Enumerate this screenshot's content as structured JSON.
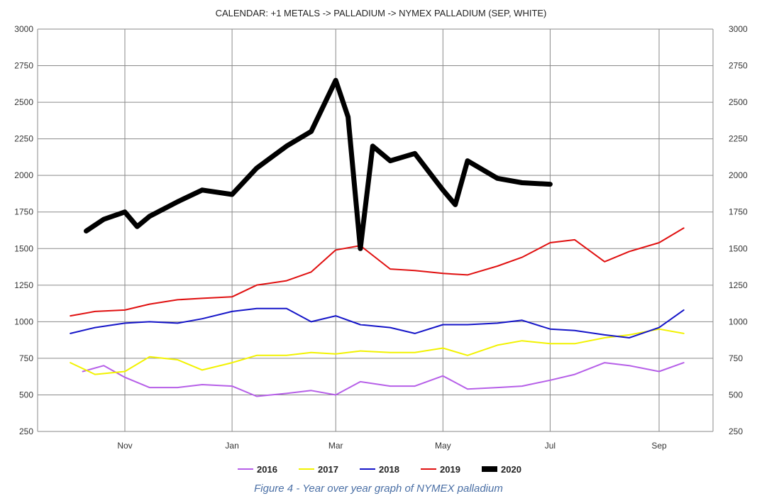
{
  "chart_data": {
    "type": "line",
    "title": "CALENDAR: +1 METALS -> PALLADIUM -> NYMEX PALLADIUM (SEP, WHITE)",
    "ylim": [
      250,
      3000
    ],
    "yticks": [
      250,
      500,
      750,
      1000,
      1250,
      1500,
      1750,
      2000,
      2250,
      2500,
      2750,
      3000
    ],
    "x_ticks": [
      "Nov",
      "Jan",
      "Mar",
      "May",
      "Jul",
      "Sep"
    ],
    "grid": true,
    "legend_position": "bottom",
    "series": [
      {
        "name": "2016",
        "color": "#b65fe8",
        "width": 2,
        "x": [
          "Oct 08",
          "Oct 20",
          "Nov 01",
          "Nov 15",
          "Dec 01",
          "Dec 15",
          "Jan 01",
          "Jan 15",
          "Feb 01",
          "Feb 15",
          "Mar 01",
          "Mar 15",
          "Apr 01",
          "Apr 15",
          "May 01",
          "May 15",
          "Jun 01",
          "Jun 15",
          "Jul 01",
          "Jul 15",
          "Aug 01",
          "Aug 15",
          "Sep 01",
          "Sep 15"
        ],
        "values": [
          660,
          700,
          620,
          550,
          550,
          570,
          560,
          490,
          510,
          530,
          500,
          590,
          560,
          560,
          630,
          540,
          550,
          560,
          600,
          640,
          720,
          700,
          660,
          720
        ]
      },
      {
        "name": "2017",
        "color": "#f2f200",
        "width": 2,
        "x": [
          "Oct 01",
          "Oct 15",
          "Nov 01",
          "Nov 15",
          "Dec 01",
          "Dec 15",
          "Jan 01",
          "Jan 15",
          "Feb 01",
          "Feb 15",
          "Mar 01",
          "Mar 15",
          "Apr 01",
          "Apr 15",
          "May 01",
          "May 15",
          "Jun 01",
          "Jun 15",
          "Jul 01",
          "Jul 15",
          "Aug 01",
          "Aug 15",
          "Sep 01",
          "Sep 15"
        ],
        "values": [
          720,
          640,
          660,
          760,
          740,
          670,
          720,
          770,
          770,
          790,
          780,
          800,
          790,
          790,
          820,
          770,
          840,
          870,
          850,
          850,
          890,
          910,
          950,
          920
        ]
      },
      {
        "name": "2018",
        "color": "#1515c8",
        "width": 2,
        "x": [
          "Oct 01",
          "Oct 15",
          "Nov 01",
          "Nov 15",
          "Dec 01",
          "Dec 15",
          "Jan 01",
          "Jan 15",
          "Feb 01",
          "Feb 15",
          "Mar 01",
          "Mar 15",
          "Apr 01",
          "Apr 15",
          "May 01",
          "May 15",
          "Jun 01",
          "Jun 15",
          "Jul 01",
          "Jul 15",
          "Aug 01",
          "Aug 15",
          "Sep 01",
          "Sep 15"
        ],
        "values": [
          920,
          960,
          990,
          1000,
          990,
          1020,
          1070,
          1090,
          1090,
          1000,
          1040,
          980,
          960,
          920,
          980,
          980,
          990,
          1010,
          950,
          940,
          910,
          890,
          960,
          1080
        ]
      },
      {
        "name": "2019",
        "color": "#e01010",
        "width": 2,
        "x": [
          "Oct 01",
          "Oct 15",
          "Nov 01",
          "Nov 15",
          "Dec 01",
          "Dec 15",
          "Jan 01",
          "Jan 15",
          "Feb 01",
          "Feb 15",
          "Mar 01",
          "Mar 15",
          "Apr 01",
          "Apr 15",
          "May 01",
          "May 15",
          "Jun 01",
          "Jun 15",
          "Jul 01",
          "Jul 15",
          "Aug 01",
          "Aug 15",
          "Sep 01",
          "Sep 15"
        ],
        "values": [
          1040,
          1070,
          1080,
          1120,
          1150,
          1160,
          1170,
          1250,
          1280,
          1340,
          1490,
          1520,
          1360,
          1350,
          1330,
          1320,
          1380,
          1440,
          1540,
          1560,
          1410,
          1480,
          1540,
          1640
        ]
      },
      {
        "name": "2020",
        "color": "#000000",
        "width": 7,
        "x": [
          "Oct 10",
          "Oct 20",
          "Nov 01",
          "Nov 08",
          "Nov 15",
          "Dec 01",
          "Dec 15",
          "Jan 01",
          "Jan 15",
          "Feb 01",
          "Feb 15",
          "Mar 01",
          "Mar 08",
          "Mar 15",
          "Mar 22",
          "Apr 01",
          "Apr 15",
          "May 01",
          "May 08",
          "May 15",
          "Jun 01",
          "Jun 15",
          "Jul 01"
        ],
        "values": [
          1620,
          1700,
          1750,
          1650,
          1720,
          1820,
          1900,
          1870,
          2050,
          2200,
          2300,
          2650,
          2400,
          1500,
          2200,
          2100,
          2150,
          1900,
          1800,
          2100,
          1980,
          1950,
          1940
        ]
      }
    ]
  },
  "caption": "Figure 4 - Year over year graph of NYMEX palladium"
}
